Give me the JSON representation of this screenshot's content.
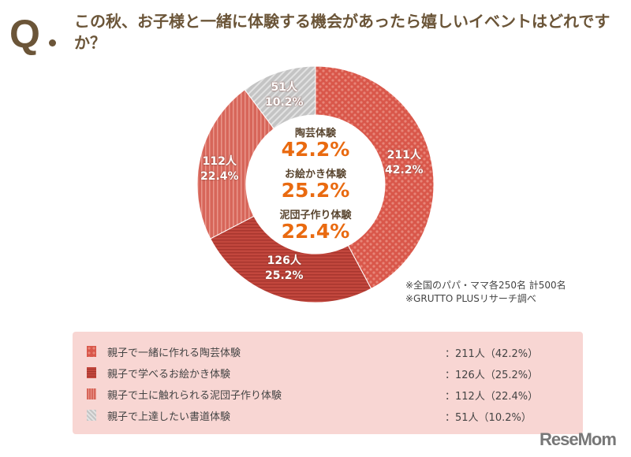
{
  "header": {
    "q_mark": "Q",
    "title": "この秋、お子様と一緒に体験する機会があったら嬉しいイベントはどれですか？"
  },
  "chart_data": {
    "type": "pie",
    "donut": true,
    "start": "top",
    "direction": "clockwise",
    "categories": [
      "親子で一緒に作れる陶芸体験",
      "親子で学べるお絵かき体験",
      "親子で土に触れられる泥団子作り体験",
      "親子で上達したい書道体験"
    ],
    "values": [
      211,
      126,
      112,
      51
    ],
    "percents": [
      42.2,
      25.2,
      22.4,
      10.2
    ],
    "slice_labels": [
      {
        "count": "211人",
        "pct": "42.2%"
      },
      {
        "count": "126人",
        "pct": "25.2%"
      },
      {
        "count": "112人",
        "pct": "22.4%"
      },
      {
        "count": "51人",
        "pct": "10.2%"
      }
    ],
    "patterns": [
      "dots",
      "horizontal-stripes",
      "vertical-stripes",
      "diagonal-gray"
    ],
    "colors": [
      "#d9574a",
      "#c2473d",
      "#d7665a",
      "#c8c8c8"
    ],
    "center": [
      {
        "name": "陶芸体験",
        "value": "42.2%"
      },
      {
        "name": "お絵かき体験",
        "value": "25.2%"
      },
      {
        "name": "泥団子作り体験",
        "value": "22.4%"
      }
    ],
    "accent_color": "#e96a10"
  },
  "notes": [
    "※全国のパパ・ママ各250名 計500名",
    "※GRUTTO PLUSリサーチ調べ"
  ],
  "legend": [
    {
      "label": "親子で一緒に作れる陶芸体験",
      "value": "：211人（42.2%）"
    },
    {
      "label": "親子で学べるお絵かき体験",
      "value": "：126人（25.2%）"
    },
    {
      "label": "親子で土に触れられる泥団子作り体験",
      "value": "：112人（22.4%）"
    },
    {
      "label": "親子で上達したい書道体験",
      "value": "：51人（10.2%）"
    }
  ],
  "logo": "ReseMom"
}
